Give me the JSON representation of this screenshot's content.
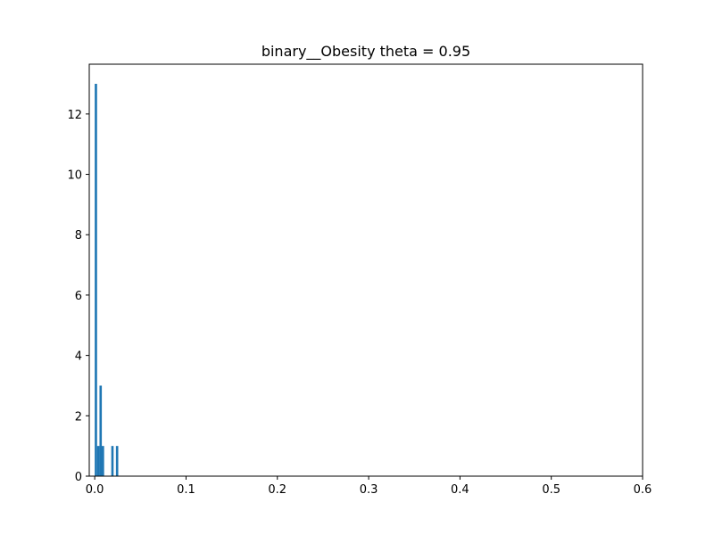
{
  "chart_data": {
    "type": "bar",
    "title": "binary__Obesity theta = 0.95",
    "xlabel": "",
    "ylabel": "",
    "xlim": [
      -0.006,
      0.6
    ],
    "ylim": [
      0,
      13.65
    ],
    "x_ticks": [
      0.0,
      0.1,
      0.2,
      0.3,
      0.4,
      0.5,
      0.6
    ],
    "x_tick_labels": [
      "0.0",
      "0.1",
      "0.2",
      "0.3",
      "0.4",
      "0.5",
      "0.6"
    ],
    "y_ticks": [
      0,
      2,
      4,
      6,
      8,
      10,
      12
    ],
    "y_tick_labels": [
      "0",
      "2",
      "4",
      "6",
      "8",
      "10",
      "12"
    ],
    "bin_width": 0.00258,
    "bins": [
      {
        "x": 0.0,
        "count": 13
      },
      {
        "x": 0.0026,
        "count": 1
      },
      {
        "x": 0.0052,
        "count": 3
      },
      {
        "x": 0.0077,
        "count": 1
      },
      {
        "x": 0.0181,
        "count": 1
      },
      {
        "x": 0.0232,
        "count": 1
      }
    ],
    "grid": false,
    "legend": "none",
    "bar_color": "#1f77b4"
  }
}
